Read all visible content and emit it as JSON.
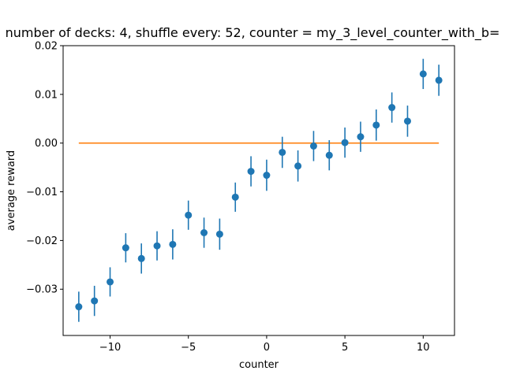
{
  "chart_data": {
    "type": "scatter",
    "title": "number of decks: 4, shuffle every: 52, counter = my_3_level_counter_with_b=",
    "xlabel": "counter",
    "ylabel": "average reward",
    "xlim": [
      -13,
      12
    ],
    "ylim": [
      -0.0395,
      0.02
    ],
    "xticks": [
      -10,
      -5,
      0,
      5,
      10
    ],
    "xtick_labels": [
      "−10",
      "−5",
      "0",
      "5",
      "10"
    ],
    "yticks": [
      -0.03,
      -0.02,
      -0.01,
      0.0,
      0.01,
      0.02
    ],
    "ytick_labels": [
      "−0.03",
      "−0.02",
      "−0.01",
      "0.00",
      "0.01",
      "0.02"
    ],
    "grid": false,
    "series": [
      {
        "kind": "errorbar",
        "color": "#1f77b4",
        "x": [
          -12,
          -11,
          -10,
          -9,
          -8,
          -7,
          -6,
          -5,
          -4,
          -3,
          -2,
          -1,
          0,
          1,
          2,
          3,
          4,
          5,
          6,
          7,
          8,
          9,
          10,
          11
        ],
        "y": [
          -0.0336,
          -0.0324,
          -0.0285,
          -0.0215,
          -0.0237,
          -0.0211,
          -0.0208,
          -0.0148,
          -0.0184,
          -0.0187,
          -0.0111,
          -0.0058,
          -0.0066,
          -0.0019,
          -0.0047,
          -0.0006,
          -0.0025,
          0.0001,
          0.0013,
          0.0037,
          0.0073,
          0.0045,
          0.0142,
          0.0129
        ],
        "yerr": [
          0.0031,
          0.0031,
          0.003,
          0.003,
          0.0031,
          0.003,
          0.0031,
          0.003,
          0.0031,
          0.0032,
          0.003,
          0.0031,
          0.0032,
          0.0032,
          0.0032,
          0.0031,
          0.0031,
          0.0031,
          0.0031,
          0.0032,
          0.0031,
          0.0032,
          0.0031,
          0.0032
        ]
      },
      {
        "kind": "line",
        "color": "#ff7f0e",
        "x": [
          -12,
          11
        ],
        "y": [
          0.0,
          0.0
        ]
      }
    ]
  }
}
